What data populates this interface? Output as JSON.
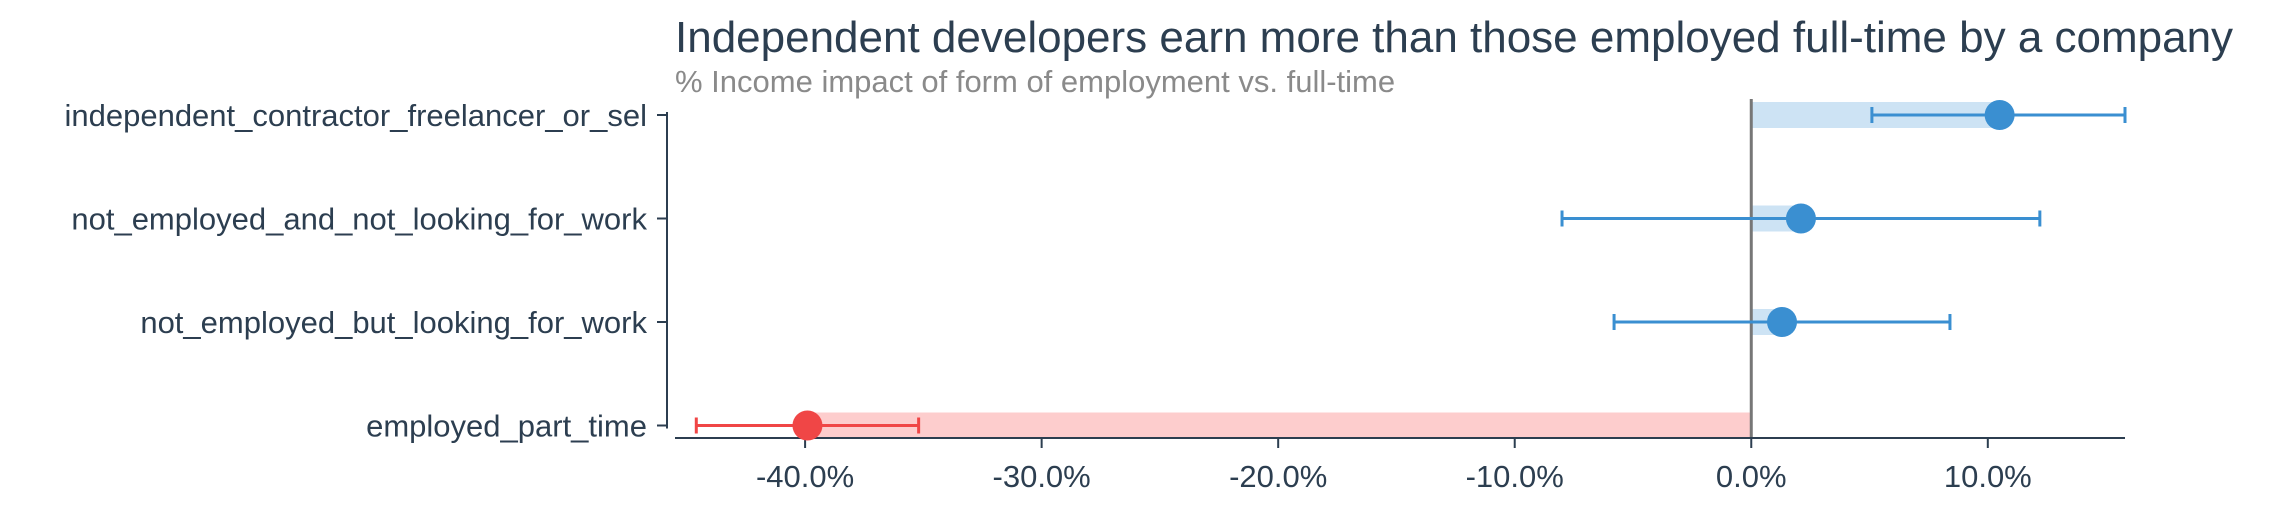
{
  "chart_data": {
    "type": "dot-errorbar",
    "title": "Independent developers earn more than those employed full-time by a company",
    "subtitle": "% Income impact of form of employment vs. full-time",
    "categories": [
      "independent_contractor_freelancer_or_sel",
      "not_employed_and_not_looking_for_work",
      "not_employed_but_looking_for_work",
      "employed_part_time"
    ],
    "values": [
      10.5,
      2.1,
      1.3,
      -39.9
    ],
    "error_low": [
      5.1,
      -8.0,
      -5.8,
      -44.6
    ],
    "error_high": [
      15.8,
      12.2,
      8.4,
      -35.2
    ],
    "xlim": [
      -45.5,
      15.8
    ],
    "xticks": [
      -40,
      -30,
      -20,
      -10,
      0,
      10
    ],
    "xtick_labels": [
      "-40.0%",
      "-30.0%",
      "-20.0%",
      "-10.0%",
      "0.0%",
      "10.0%"
    ],
    "colors": {
      "positive": "#3a8fd1",
      "positive_band": "#cde3f4",
      "negative": "#f04646",
      "negative_band": "#fdcdcd",
      "zero_line": "#777777",
      "axis": "#2c3e50"
    }
  }
}
